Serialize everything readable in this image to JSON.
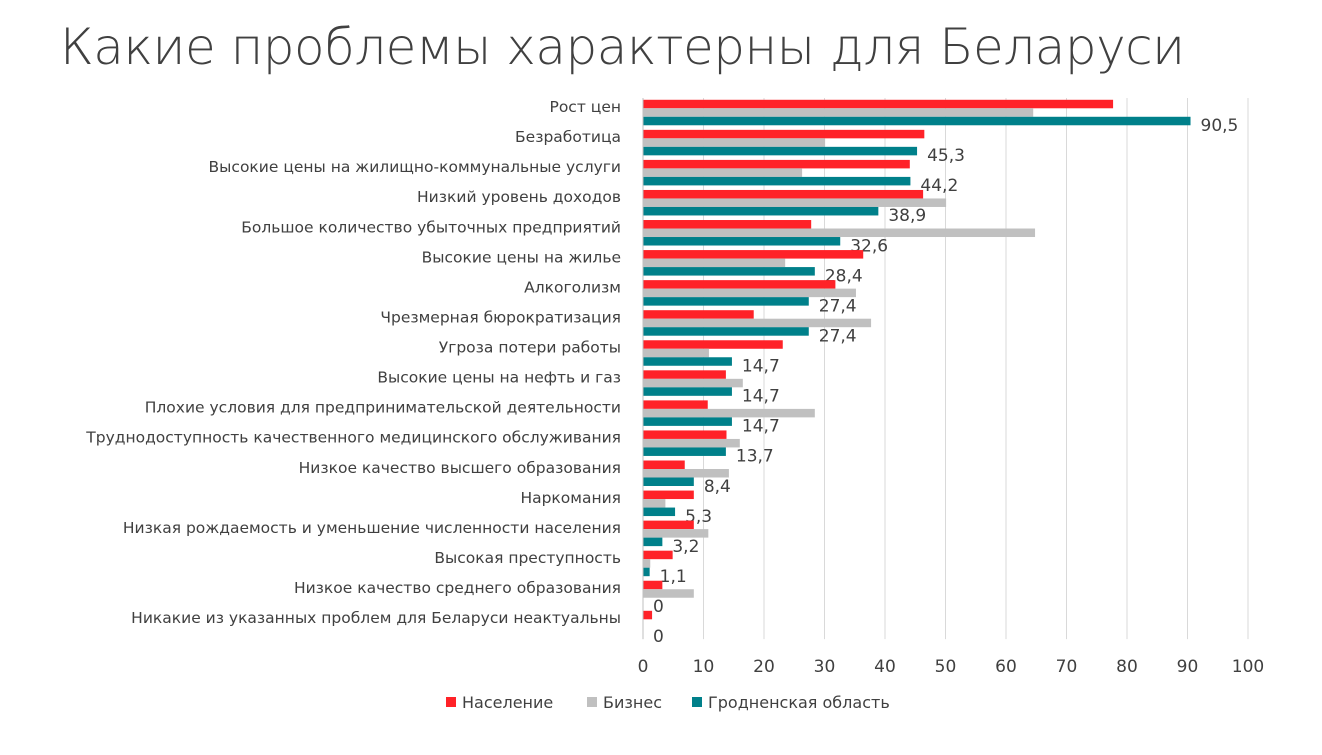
{
  "chart_data": {
    "type": "bar",
    "orientation": "horizontal",
    "title": "Какие проблемы характерны для Беларуси",
    "categories": [
      "Рост цен",
      "Безработица",
      "Высокие цены на жилищно-коммунальные услуги",
      "Низкий уровень доходов",
      "Большое количество убыточных предприятий",
      "Высокие цены на жилье",
      "Алкоголизм",
      "Чрезмерная бюрократизация",
      "Угроза потери работы",
      "Высокие цены на нефть и газ",
      "Плохие условия для предпринимательской деятельности",
      "Труднодоступность качественного медицинского обслуживания",
      "Низкое качество высшего образования",
      "Наркомания",
      "Низкая рождаемость и уменьшение численности населения",
      "Высокая преступность",
      "Низкое качество среднего образования",
      "Никакие из указанных проблем для Беларуси неактуальны"
    ],
    "series": [
      {
        "name": "Население",
        "color": "#ff2228",
        "values": [
          77.7,
          46.5,
          44.1,
          46.3,
          27.8,
          36.4,
          31.8,
          18.3,
          23.1,
          13.7,
          10.7,
          13.8,
          6.9,
          8.4,
          8.4,
          4.9,
          3.2,
          1.5
        ]
      },
      {
        "name": "Бизнес",
        "color": "#c0c0c0",
        "values": [
          64.5,
          30.1,
          26.3,
          50.1,
          64.8,
          23.5,
          35.2,
          37.7,
          10.9,
          16.5,
          28.4,
          16.0,
          14.2,
          3.7,
          10.8,
          1.2,
          8.4,
          0
        ]
      },
      {
        "name": "Гродненская область",
        "color": "#00808a",
        "values": [
          90.5,
          45.3,
          44.2,
          38.9,
          32.6,
          28.4,
          27.4,
          27.4,
          14.7,
          14.7,
          14.7,
          13.7,
          8.4,
          5.3,
          3.2,
          1.1,
          0,
          0
        ],
        "data_labels": [
          "90,5",
          "45,3",
          "44,2",
          "38,9",
          "32,6",
          "28,4",
          "27,4",
          "27,4",
          "14,7",
          "14,7",
          "14,7",
          "13,7",
          "8,4",
          "5,3",
          "3,2",
          "1,1",
          "0",
          "0"
        ]
      }
    ],
    "xlim": [
      0,
      100
    ],
    "xticks": [
      "0",
      "10",
      "20",
      "30",
      "40",
      "50",
      "60",
      "70",
      "80",
      "90",
      "100"
    ],
    "grid": true,
    "legend": "bottom",
    "xlabel": "",
    "ylabel": ""
  }
}
